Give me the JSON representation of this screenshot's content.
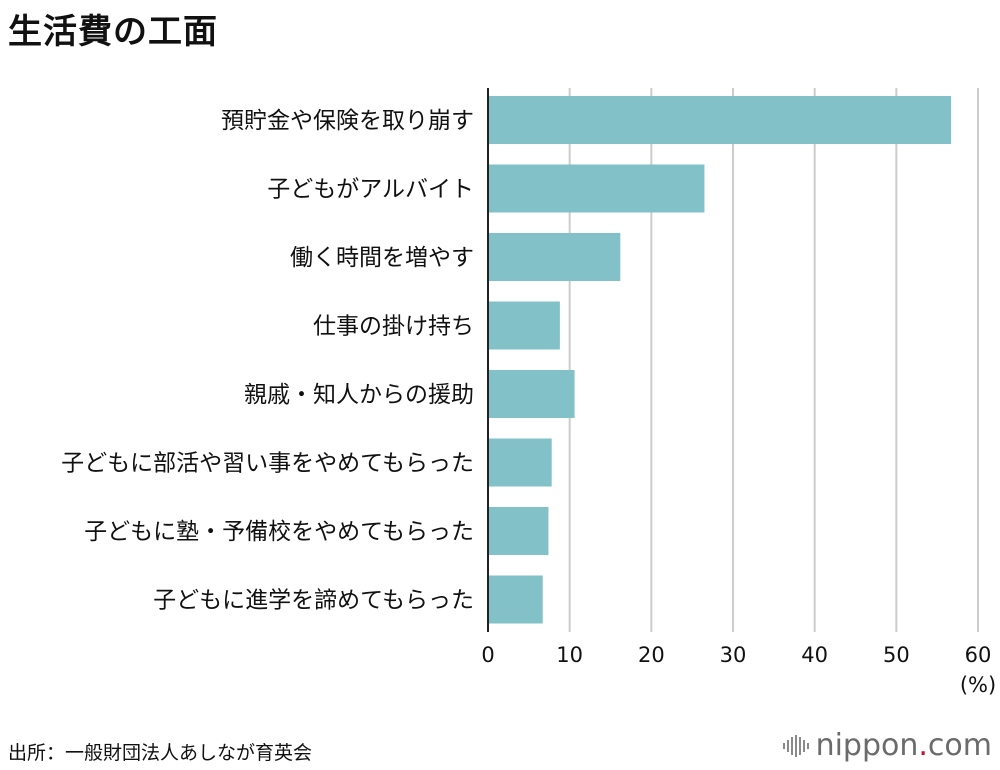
{
  "chart_data": {
    "type": "bar",
    "orientation": "horizontal",
    "title": "生活費の工面",
    "categories": [
      "預貯金や保険を取り崩す",
      "子どもがアルバイト",
      "働く時間を増やす",
      "仕事の掛け持ち",
      "親戚・知人からの援助",
      "子どもに部活や習い事をやめてもらった",
      "子どもに塾・予備校をやめてもらった",
      "子どもに進学を諦めてもらった"
    ],
    "values": [
      56.7,
      26.5,
      16.2,
      8.8,
      10.6,
      7.8,
      7.4,
      6.7
    ],
    "xlim": [
      0,
      60
    ],
    "xticks": [
      0,
      10,
      20,
      30,
      40,
      50,
      60
    ],
    "xunit": "(%)",
    "grid": true,
    "bar_color": "#82c1c8",
    "grid_color": "#cccccc",
    "axis_color": "#222222"
  },
  "footer": {
    "source": "出所：一般財団法人あしなが育英会",
    "brand_name": "nippon",
    "brand_dot": ".",
    "brand_suffix": "com",
    "brand_icon": "nippon-wave-logo"
  }
}
